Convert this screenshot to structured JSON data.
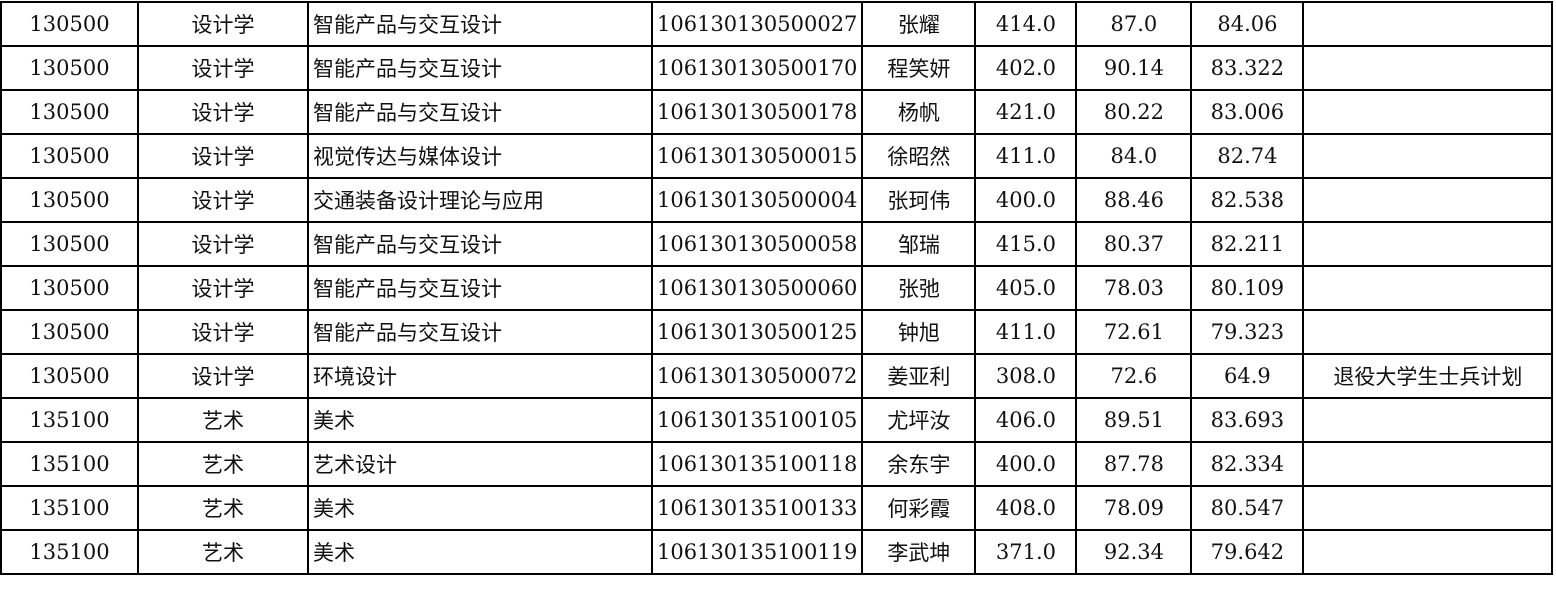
{
  "rows": [
    [
      "130500",
      "设计学",
      "智能产品与交互设计",
      "106130130500027",
      "张耀",
      "414.0",
      "87.0",
      "84.06",
      ""
    ],
    [
      "130500",
      "设计学",
      "智能产品与交互设计",
      "106130130500170",
      "程笑妍",
      "402.0",
      "90.14",
      "83.322",
      ""
    ],
    [
      "130500",
      "设计学",
      "智能产品与交互设计",
      "106130130500178",
      "杨帆",
      "421.0",
      "80.22",
      "83.006",
      ""
    ],
    [
      "130500",
      "设计学",
      "视觉传达与媒体设计",
      "106130130500015",
      "徐昭然",
      "411.0",
      "84.0",
      "82.74",
      ""
    ],
    [
      "130500",
      "设计学",
      "交通装备设计理论与应用",
      "106130130500004",
      "张珂伟",
      "400.0",
      "88.46",
      "82.538",
      ""
    ],
    [
      "130500",
      "设计学",
      "智能产品与交互设计",
      "106130130500058",
      "邹瑞",
      "415.0",
      "80.37",
      "82.211",
      ""
    ],
    [
      "130500",
      "设计学",
      "智能产品与交互设计",
      "106130130500060",
      "张弛",
      "405.0",
      "78.03",
      "80.109",
      ""
    ],
    [
      "130500",
      "设计学",
      "智能产品与交互设计",
      "106130130500125",
      "钟旭",
      "411.0",
      "72.61",
      "79.323",
      ""
    ],
    [
      "130500",
      "设计学",
      "环境设计",
      "106130130500072",
      "姜亚利",
      "308.0",
      "72.6",
      "64.9",
      "退役大学生士兵计划"
    ],
    [
      "135100",
      "艺术",
      "美术",
      "106130135100105",
      "尤坪汝",
      "406.0",
      "89.51",
      "83.693",
      ""
    ],
    [
      "135100",
      "艺术",
      "艺术设计",
      "106130135100118",
      "余东宇",
      "400.0",
      "87.78",
      "82.334",
      ""
    ],
    [
      "135100",
      "艺术",
      "美术",
      "106130135100133",
      "何彩霞",
      "408.0",
      "78.09",
      "80.547",
      ""
    ],
    [
      "135100",
      "艺术",
      "美术",
      "106130135100119",
      "李武坤",
      "371.0",
      "92.34",
      "79.642",
      ""
    ]
  ]
}
